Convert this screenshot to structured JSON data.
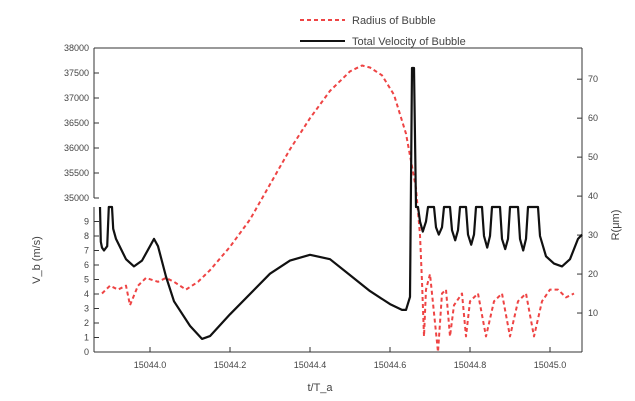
{
  "chart_data": {
    "type": "line",
    "x": {
      "label": "t/T_a",
      "range": [
        15043.86,
        15045.08
      ],
      "ticks": [
        15044.0,
        15044.2,
        15044.4,
        15044.6,
        15044.8,
        15045.0
      ],
      "tick_labels": [
        "15044.0",
        "15044.2",
        "15044.4",
        "15044.6",
        "15044.8",
        "15045.0"
      ]
    },
    "y_left": {
      "label": "V_b (m/s)",
      "lower": {
        "range": [
          0,
          10
        ],
        "ticks": [
          0,
          1,
          2,
          3,
          4,
          5,
          6,
          7,
          8,
          9
        ],
        "tick_labels": [
          "0",
          "1",
          "2",
          "3",
          "4",
          "5",
          "6",
          "7",
          "8",
          "9"
        ]
      },
      "upper": {
        "range": [
          35000,
          38000
        ],
        "ticks": [
          35000,
          35500,
          36000,
          36500,
          37000,
          37500,
          38000
        ],
        "tick_labels": [
          "35000",
          "35500",
          "36000",
          "36500",
          "37000",
          "37500",
          "38000"
        ]
      }
    },
    "y_right": {
      "label": "R(μm)",
      "range": [
        0,
        78
      ],
      "ticks": [
        10,
        20,
        30,
        40,
        50,
        60,
        70
      ],
      "tick_labels": [
        "10",
        "20",
        "30",
        "40",
        "50",
        "60",
        "70"
      ]
    },
    "legend": {
      "position": "top",
      "entries": [
        "Radius of Bubble",
        "Total Velocity of Bubble"
      ]
    },
    "series": [
      {
        "name": "Radius of Bubble",
        "axis": "right",
        "style": "dashed",
        "color": "#ee4444",
        "points": [
          [
            15043.88,
            15
          ],
          [
            15043.9,
            17
          ],
          [
            15043.92,
            16
          ],
          [
            15043.94,
            17
          ],
          [
            15043.95,
            12
          ],
          [
            15043.97,
            17
          ],
          [
            15043.99,
            19
          ],
          [
            15044.02,
            18
          ],
          [
            15044.04,
            19
          ],
          [
            15044.06,
            18
          ],
          [
            15044.09,
            16
          ],
          [
            15044.12,
            18
          ],
          [
            15044.15,
            21
          ],
          [
            15044.2,
            27
          ],
          [
            15044.25,
            34
          ],
          [
            15044.3,
            43
          ],
          [
            15044.35,
            52
          ],
          [
            15044.4,
            60
          ],
          [
            15044.45,
            67
          ],
          [
            15044.48,
            70
          ],
          [
            15044.5,
            72
          ],
          [
            15044.53,
            73.5
          ],
          [
            15044.55,
            73
          ],
          [
            15044.58,
            71
          ],
          [
            15044.61,
            66
          ],
          [
            15044.64,
            56
          ],
          [
            15044.665,
            42
          ],
          [
            15044.675,
            30
          ],
          [
            15044.68,
            18
          ],
          [
            15044.685,
            4
          ],
          [
            15044.69,
            16
          ],
          [
            15044.7,
            20
          ],
          [
            15044.71,
            10
          ],
          [
            15044.72,
            0
          ],
          [
            15044.73,
            15
          ],
          [
            15044.74,
            16
          ],
          [
            15044.75,
            4
          ],
          [
            15044.76,
            12
          ],
          [
            15044.78,
            15
          ],
          [
            15044.79,
            4
          ],
          [
            15044.8,
            13
          ],
          [
            15044.82,
            15
          ],
          [
            15044.84,
            4
          ],
          [
            15044.86,
            13
          ],
          [
            15044.88,
            15
          ],
          [
            15044.9,
            4
          ],
          [
            15044.92,
            13
          ],
          [
            15044.94,
            15
          ],
          [
            15044.96,
            4
          ],
          [
            15044.98,
            13
          ],
          [
            15045.0,
            16
          ],
          [
            15045.02,
            16
          ],
          [
            15045.04,
            14
          ],
          [
            15045.06,
            15
          ]
        ]
      },
      {
        "name": "Total Velocity of Bubble",
        "axis": "left",
        "style": "solid",
        "color": "#111111",
        "points": [
          [
            15043.875,
            10
          ],
          [
            15043.877,
            7.6
          ],
          [
            15043.88,
            7.2
          ],
          [
            15043.885,
            7.0
          ],
          [
            15043.893,
            7.3
          ],
          [
            15043.897,
            10
          ],
          [
            15043.905,
            10
          ],
          [
            15043.908,
            8.5
          ],
          [
            15043.915,
            7.8
          ],
          [
            15043.94,
            6.4
          ],
          [
            15043.96,
            5.9
          ],
          [
            15043.98,
            6.3
          ],
          [
            15044.0,
            7.3
          ],
          [
            15044.01,
            7.8
          ],
          [
            15044.02,
            7.3
          ],
          [
            15044.04,
            5.2
          ],
          [
            15044.06,
            3.5
          ],
          [
            15044.1,
            1.8
          ],
          [
            15044.13,
            0.9
          ],
          [
            15044.15,
            1.1
          ],
          [
            15044.2,
            2.6
          ],
          [
            15044.3,
            5.4
          ],
          [
            15044.35,
            6.3
          ],
          [
            15044.4,
            6.7
          ],
          [
            15044.45,
            6.4
          ],
          [
            15044.5,
            5.3
          ],
          [
            15044.55,
            4.2
          ],
          [
            15044.6,
            3.3
          ],
          [
            15044.63,
            2.9
          ],
          [
            15044.64,
            2.9
          ],
          [
            15044.65,
            3.8
          ],
          [
            15044.655,
            37600
          ],
          [
            15044.66,
            37600
          ],
          [
            15044.665,
            10
          ],
          [
            15044.67,
            10
          ],
          [
            15044.675,
            9.0
          ],
          [
            15044.682,
            8.3
          ],
          [
            15044.69,
            9.0
          ],
          [
            15044.695,
            10
          ],
          [
            15044.71,
            10
          ],
          [
            15044.715,
            8.6
          ],
          [
            15044.722,
            8.1
          ],
          [
            15044.73,
            8.6
          ],
          [
            15044.735,
            10
          ],
          [
            15044.75,
            10
          ],
          [
            15044.755,
            8.4
          ],
          [
            15044.763,
            7.7
          ],
          [
            15044.77,
            8.4
          ],
          [
            15044.775,
            10
          ],
          [
            15044.79,
            10
          ],
          [
            15044.795,
            8.1
          ],
          [
            15044.803,
            7.4
          ],
          [
            15044.81,
            8.1
          ],
          [
            15044.815,
            10
          ],
          [
            15044.83,
            10
          ],
          [
            15044.835,
            8.0
          ],
          [
            15044.843,
            7.2
          ],
          [
            15044.85,
            8.0
          ],
          [
            15044.855,
            10
          ],
          [
            15044.875,
            10
          ],
          [
            15044.88,
            7.8
          ],
          [
            15044.888,
            7.1
          ],
          [
            15044.895,
            7.8
          ],
          [
            15044.9,
            10
          ],
          [
            15044.92,
            10
          ],
          [
            15044.925,
            7.8
          ],
          [
            15044.933,
            7.0
          ],
          [
            15044.94,
            7.8
          ],
          [
            15044.945,
            10
          ],
          [
            15044.97,
            10
          ],
          [
            15044.975,
            8.0
          ],
          [
            15044.99,
            6.6
          ],
          [
            15045.01,
            6.1
          ],
          [
            15045.03,
            5.9
          ],
          [
            15045.05,
            6.4
          ],
          [
            15045.07,
            7.8
          ],
          [
            15045.08,
            8.1
          ]
        ]
      }
    ]
  }
}
